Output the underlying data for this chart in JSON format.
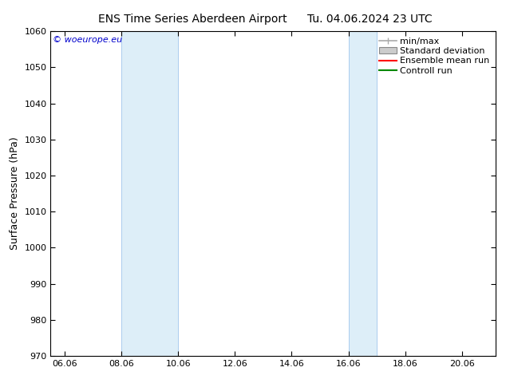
{
  "title_left": "ENS Time Series Aberdeen Airport",
  "title_right": "Tu. 04.06.2024 23 UTC",
  "ylabel": "Surface Pressure (hPa)",
  "ylim": [
    970,
    1060
  ],
  "yticks": [
    970,
    980,
    990,
    1000,
    1010,
    1020,
    1030,
    1040,
    1050,
    1060
  ],
  "xlim_start": 5.5,
  "xlim_end": 21.2,
  "xtick_labels": [
    "06.06",
    "08.06",
    "10.06",
    "12.06",
    "14.06",
    "16.06",
    "18.06",
    "20.06"
  ],
  "xtick_positions": [
    6.0,
    8.0,
    10.0,
    12.0,
    14.0,
    16.0,
    18.0,
    20.0
  ],
  "shaded_bands": [
    {
      "xmin": 8.0,
      "xmax": 10.0
    },
    {
      "xmin": 16.0,
      "xmax": 17.0
    }
  ],
  "band_color": "#ddeef8",
  "band_edge_color": "#aaccee",
  "background_color": "#ffffff",
  "copyright_text": "© woeurope.eu",
  "copyright_color": "#0000cc",
  "legend_items": [
    {
      "label": "min/max",
      "color": "#aaaaaa",
      "type": "minmax_line"
    },
    {
      "label": "Standard deviation",
      "color": "#cccccc",
      "type": "rect"
    },
    {
      "label": "Ensemble mean run",
      "color": "#ff0000",
      "type": "line"
    },
    {
      "label": "Controll run",
      "color": "#008800",
      "type": "line"
    }
  ],
  "title_fontsize": 10,
  "axis_label_fontsize": 9,
  "tick_fontsize": 8,
  "legend_fontsize": 8,
  "copyright_fontsize": 8
}
